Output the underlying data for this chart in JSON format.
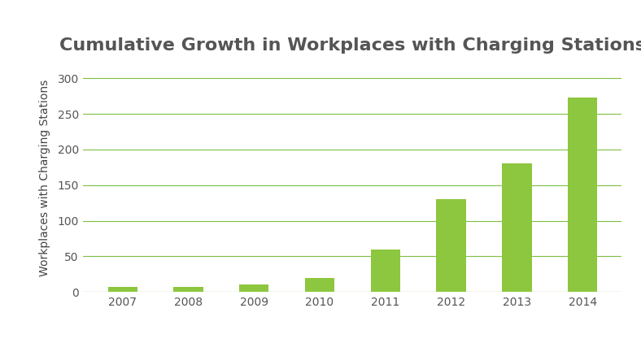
{
  "title": "Cumulative Growth in Workplaces with Charging Stations",
  "ylabel": "Workplaces with Charging Stations",
  "categories": [
    "2007",
    "2008",
    "2009",
    "2010",
    "2011",
    "2012",
    "2013",
    "2014"
  ],
  "values": [
    7,
    7,
    11,
    20,
    60,
    130,
    180,
    273
  ],
  "bar_color": "#8DC63F",
  "grid_color": "#7DC142",
  "title_color": "#555555",
  "ylabel_color": "#444444",
  "tick_color": "#555555",
  "background_color": "#ffffff",
  "ylim": [
    0,
    320
  ],
  "yticks": [
    0,
    50,
    100,
    150,
    200,
    250,
    300
  ],
  "title_fontsize": 16,
  "ylabel_fontsize": 10,
  "tick_fontsize": 10,
  "bar_width": 0.45
}
